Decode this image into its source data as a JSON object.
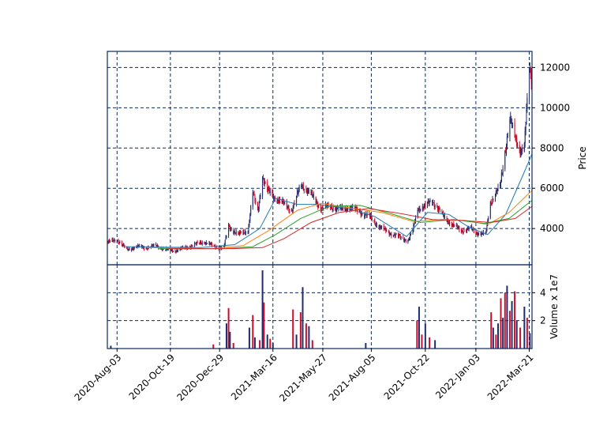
{
  "chart_data": {
    "type": "candlestick",
    "x_tick_labels": [
      "2020-Aug-03",
      "2020-Oct-19",
      "2020-Dec-29",
      "2021-Mar-16",
      "2021-May-27",
      "2021-Aug-05",
      "2021-Oct-22",
      "2022-Jan-03",
      "2022-Mar-21"
    ],
    "date_range": [
      "2020-07-20",
      "2022-03-25"
    ],
    "price_panel": {
      "ylabel": "Price",
      "y_ticks": [
        4000,
        6000,
        8000,
        10000,
        12000
      ],
      "ylim": [
        2200,
        12800
      ],
      "grid": true
    },
    "volume_panel": {
      "ylabel": "Volume x 1e7",
      "y_ticks": [
        2,
        4
      ],
      "ylim": [
        0,
        6.0
      ],
      "grid": true
    },
    "colors": {
      "up": "#1f2d6e",
      "down": "#c8102e",
      "ma_blue": "#1f77b4",
      "ma_orange": "#ff7f0e",
      "ma_green": "#2ca02c",
      "ma_red": "#d62728",
      "frame": "#0b2a5c"
    },
    "price_series": [
      {
        "date": "2020-07-20",
        "close": 3300
      },
      {
        "date": "2020-08-03",
        "close": 3450
      },
      {
        "date": "2020-08-17",
        "close": 2950
      },
      {
        "date": "2020-08-31",
        "close": 3100
      },
      {
        "date": "2020-09-14",
        "close": 3050
      },
      {
        "date": "2020-09-28",
        "close": 3150
      },
      {
        "date": "2020-10-12",
        "close": 2950
      },
      {
        "date": "2020-10-26",
        "close": 2900
      },
      {
        "date": "2020-11-09",
        "close": 3050
      },
      {
        "date": "2020-11-23",
        "close": 3200
      },
      {
        "date": "2020-12-07",
        "close": 3350
      },
      {
        "date": "2020-12-21",
        "close": 3100
      },
      {
        "date": "2021-01-04",
        "close": 3050
      },
      {
        "date": "2021-01-11",
        "close": 4100
      },
      {
        "date": "2021-01-25",
        "close": 3700
      },
      {
        "date": "2021-02-08",
        "close": 3900
      },
      {
        "date": "2021-02-15",
        "close": 5800
      },
      {
        "date": "2021-02-22",
        "close": 4800
      },
      {
        "date": "2021-03-01",
        "close": 6600
      },
      {
        "date": "2021-03-08",
        "close": 5900
      },
      {
        "date": "2021-03-16",
        "close": 5600
      },
      {
        "date": "2021-03-29",
        "close": 5300
      },
      {
        "date": "2021-04-12",
        "close": 4900
      },
      {
        "date": "2021-04-26",
        "close": 6200
      },
      {
        "date": "2021-05-10",
        "close": 5700
      },
      {
        "date": "2021-05-24",
        "close": 5000
      },
      {
        "date": "2021-06-07",
        "close": 5100
      },
      {
        "date": "2021-06-21",
        "close": 4950
      },
      {
        "date": "2021-07-05",
        "close": 5050
      },
      {
        "date": "2021-07-19",
        "close": 4850
      },
      {
        "date": "2021-08-02",
        "close": 4600
      },
      {
        "date": "2021-08-16",
        "close": 4100
      },
      {
        "date": "2021-08-30",
        "close": 3800
      },
      {
        "date": "2021-09-13",
        "close": 3600
      },
      {
        "date": "2021-09-27",
        "close": 3400
      },
      {
        "date": "2021-10-04",
        "close": 3900
      },
      {
        "date": "2021-10-11",
        "close": 5000
      },
      {
        "date": "2021-10-22",
        "close": 5100
      },
      {
        "date": "2021-11-01",
        "close": 5400
      },
      {
        "date": "2021-11-15",
        "close": 4700
      },
      {
        "date": "2021-11-29",
        "close": 4200
      },
      {
        "date": "2021-12-13",
        "close": 3900
      },
      {
        "date": "2021-12-27",
        "close": 4000
      },
      {
        "date": "2022-01-03",
        "close": 3800
      },
      {
        "date": "2022-01-17",
        "close": 3700
      },
      {
        "date": "2022-01-24",
        "close": 5300
      },
      {
        "date": "2022-02-07",
        "close": 6100
      },
      {
        "date": "2022-02-14",
        "close": 7800
      },
      {
        "date": "2022-02-21",
        "close": 9500
      },
      {
        "date": "2022-03-01",
        "close": 8400
      },
      {
        "date": "2022-03-08",
        "close": 7900
      },
      {
        "date": "2022-03-14",
        "close": 8200
      },
      {
        "date": "2022-03-21",
        "close": 11800
      },
      {
        "date": "2022-03-25",
        "close": 11300
      }
    ],
    "moving_averages": [
      {
        "color_key": "ma_blue",
        "values": [
          {
            "date": "2020-08-15",
            "v": 3100
          },
          {
            "date": "2020-12-01",
            "v": 3050
          },
          {
            "date": "2021-01-20",
            "v": 3200
          },
          {
            "date": "2021-02-25",
            "v": 4000
          },
          {
            "date": "2021-03-20",
            "v": 5500
          },
          {
            "date": "2021-04-20",
            "v": 5200
          },
          {
            "date": "2021-05-20",
            "v": 5200
          },
          {
            "date": "2021-07-01",
            "v": 5000
          },
          {
            "date": "2021-08-10",
            "v": 4600
          },
          {
            "date": "2021-09-25",
            "v": 3600
          },
          {
            "date": "2021-10-25",
            "v": 4800
          },
          {
            "date": "2021-11-25",
            "v": 4700
          },
          {
            "date": "2021-12-25",
            "v": 4050
          },
          {
            "date": "2022-01-20",
            "v": 3700
          },
          {
            "date": "2022-02-15",
            "v": 4700
          },
          {
            "date": "2022-03-10",
            "v": 6500
          },
          {
            "date": "2022-03-25",
            "v": 7700
          }
        ]
      },
      {
        "color_key": "ma_orange",
        "values": [
          {
            "date": "2020-09-15",
            "v": 3050
          },
          {
            "date": "2020-12-15",
            "v": 3000
          },
          {
            "date": "2021-02-01",
            "v": 3150
          },
          {
            "date": "2021-03-10",
            "v": 3900
          },
          {
            "date": "2021-04-20",
            "v": 4900
          },
          {
            "date": "2021-05-25",
            "v": 5250
          },
          {
            "date": "2021-07-10",
            "v": 5000
          },
          {
            "date": "2021-08-20",
            "v": 4800
          },
          {
            "date": "2021-10-05",
            "v": 4350
          },
          {
            "date": "2021-11-15",
            "v": 4450
          },
          {
            "date": "2021-12-20",
            "v": 4400
          },
          {
            "date": "2022-01-20",
            "v": 4200
          },
          {
            "date": "2022-02-20",
            "v": 4800
          },
          {
            "date": "2022-03-25",
            "v": 5900
          }
        ]
      },
      {
        "color_key": "ma_green",
        "values": [
          {
            "date": "2020-10-01",
            "v": 3000
          },
          {
            "date": "2021-01-01",
            "v": 3000
          },
          {
            "date": "2021-02-15",
            "v": 3100
          },
          {
            "date": "2021-03-20",
            "v": 3700
          },
          {
            "date": "2021-04-25",
            "v": 4500
          },
          {
            "date": "2021-06-05",
            "v": 5100
          },
          {
            "date": "2021-07-20",
            "v": 5150
          },
          {
            "date": "2021-09-01",
            "v": 4750
          },
          {
            "date": "2021-10-15",
            "v": 4300
          },
          {
            "date": "2021-12-01",
            "v": 4450
          },
          {
            "date": "2022-01-15",
            "v": 4250
          },
          {
            "date": "2022-02-20",
            "v": 4500
          },
          {
            "date": "2022-03-25",
            "v": 5400
          }
        ]
      },
      {
        "color_key": "ma_red",
        "values": [
          {
            "date": "2020-10-15",
            "v": 3000
          },
          {
            "date": "2021-01-15",
            "v": 3000
          },
          {
            "date": "2021-03-01",
            "v": 3050
          },
          {
            "date": "2021-04-01",
            "v": 3500
          },
          {
            "date": "2021-05-10",
            "v": 4300
          },
          {
            "date": "2021-06-20",
            "v": 4800
          },
          {
            "date": "2021-08-01",
            "v": 5000
          },
          {
            "date": "2021-09-15",
            "v": 4750
          },
          {
            "date": "2021-11-01",
            "v": 4450
          },
          {
            "date": "2021-12-15",
            "v": 4400
          },
          {
            "date": "2022-01-25",
            "v": 4300
          },
          {
            "date": "2022-03-01",
            "v": 4500
          },
          {
            "date": "2022-03-25",
            "v": 5100
          }
        ]
      }
    ],
    "volume_series": [
      {
        "date": "2020-07-25",
        "v": 0.2
      },
      {
        "date": "2020-12-20",
        "v": 0.3
      },
      {
        "date": "2021-01-08",
        "v": 1.8
      },
      {
        "date": "2021-01-11",
        "v": 2.9
      },
      {
        "date": "2021-01-13",
        "v": 1.2
      },
      {
        "date": "2021-01-18",
        "v": 0.4
      },
      {
        "date": "2021-02-10",
        "v": 1.5
      },
      {
        "date": "2021-02-15",
        "v": 2.4
      },
      {
        "date": "2021-02-18",
        "v": 0.8
      },
      {
        "date": "2021-02-25",
        "v": 0.6
      },
      {
        "date": "2021-03-01",
        "v": 5.6
      },
      {
        "date": "2021-03-03",
        "v": 3.3
      },
      {
        "date": "2021-03-08",
        "v": 1.0
      },
      {
        "date": "2021-03-12",
        "v": 0.7
      },
      {
        "date": "2021-03-16",
        "v": 0.4
      },
      {
        "date": "2021-04-14",
        "v": 2.8
      },
      {
        "date": "2021-04-19",
        "v": 1.0
      },
      {
        "date": "2021-04-25",
        "v": 2.6
      },
      {
        "date": "2021-04-28",
        "v": 4.4
      },
      {
        "date": "2021-05-03",
        "v": 1.8
      },
      {
        "date": "2021-05-07",
        "v": 1.6
      },
      {
        "date": "2021-05-12",
        "v": 0.6
      },
      {
        "date": "2021-07-28",
        "v": 0.4
      },
      {
        "date": "2021-10-10",
        "v": 2.0
      },
      {
        "date": "2021-10-13",
        "v": 3.0
      },
      {
        "date": "2021-10-17",
        "v": 1.0
      },
      {
        "date": "2021-10-22",
        "v": 1.8
      },
      {
        "date": "2021-10-28",
        "v": 0.8
      },
      {
        "date": "2021-11-05",
        "v": 0.6
      },
      {
        "date": "2022-01-25",
        "v": 2.6
      },
      {
        "date": "2022-01-28",
        "v": 1.5
      },
      {
        "date": "2022-02-01",
        "v": 1.0
      },
      {
        "date": "2022-02-04",
        "v": 1.8
      },
      {
        "date": "2022-02-08",
        "v": 3.6
      },
      {
        "date": "2022-02-11",
        "v": 2.2
      },
      {
        "date": "2022-02-14",
        "v": 4.0
      },
      {
        "date": "2022-02-17",
        "v": 4.5
      },
      {
        "date": "2022-02-21",
        "v": 2.7
      },
      {
        "date": "2022-02-24",
        "v": 3.4
      },
      {
        "date": "2022-02-28",
        "v": 4.1
      },
      {
        "date": "2022-03-03",
        "v": 2.0
      },
      {
        "date": "2022-03-08",
        "v": 1.5
      },
      {
        "date": "2022-03-14",
        "v": 3.0
      },
      {
        "date": "2022-03-18",
        "v": 2.2
      },
      {
        "date": "2022-03-22",
        "v": 1.1
      }
    ]
  }
}
